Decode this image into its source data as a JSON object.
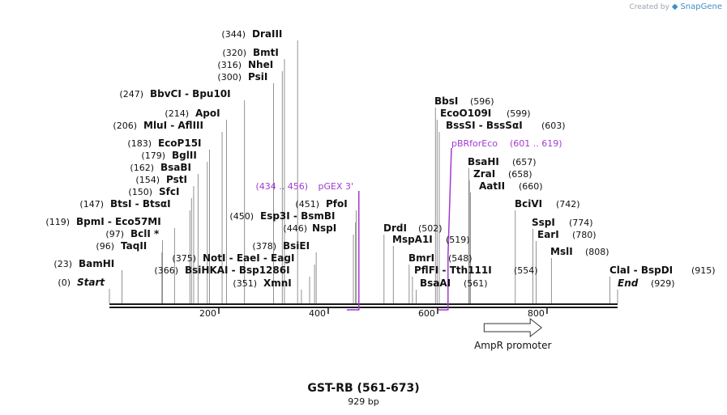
{
  "credit": {
    "prefix": "Created by",
    "brand": "SnapGene"
  },
  "map": {
    "title": "GST-RB (561-673)",
    "length_label": "929 bp",
    "total_length": 929,
    "axis_ticks": [
      200,
      400,
      600,
      800
    ],
    "colors": {
      "backbone": "#1a1a1a",
      "primer": "#a23ad2",
      "text": "#111111",
      "leader": "#777777"
    }
  },
  "sites": [
    {
      "name": "Start",
      "pos": "(0)",
      "bp": 0,
      "italic": true
    },
    {
      "name": "BamHI",
      "pos": "(23)",
      "bp": 23
    },
    {
      "name": "TaqII",
      "pos": "(96)",
      "bp": 96
    },
    {
      "name": "BclI *",
      "pos": "(97)",
      "bp": 97
    },
    {
      "name": "BpmI  -  Eco57MI",
      "pos": "(119)",
      "bp": 119
    },
    {
      "name": "BtsI  -  BtsαI",
      "pos": "(147)",
      "bp": 147
    },
    {
      "name": "SfcI",
      "pos": "(150)",
      "bp": 150
    },
    {
      "name": "PstI",
      "pos": "(154)",
      "bp": 154
    },
    {
      "name": "BsaBI",
      "pos": "(162)",
      "bp": 162
    },
    {
      "name": "BglII",
      "pos": "(179)",
      "bp": 179
    },
    {
      "name": "EcoP15I",
      "pos": "(183)",
      "bp": 183
    },
    {
      "name": "MluI  -  AflIII",
      "pos": "(206)",
      "bp": 206
    },
    {
      "name": "ApoI",
      "pos": "(214)",
      "bp": 214
    },
    {
      "name": "BbvCI  -  Bpu10I",
      "pos": "(247)",
      "bp": 247
    },
    {
      "name": "PsiI",
      "pos": "(300)",
      "bp": 300
    },
    {
      "name": "NheI",
      "pos": "(316)",
      "bp": 316
    },
    {
      "name": "BmtI",
      "pos": "(320)",
      "bp": 320
    },
    {
      "name": "DraIII",
      "pos": "(344)",
      "bp": 344
    },
    {
      "name": "BsiHKAI  -  Bsp1286I",
      "pos": "(366)",
      "bp": 366
    },
    {
      "name": "NotI  -  EaeI  -  EagI",
      "pos": "(375)",
      "bp": 375
    },
    {
      "name": "XmnI",
      "pos": "(351)",
      "bp": 351
    },
    {
      "name": "BsiEI",
      "pos": "(378)",
      "bp": 378
    },
    {
      "name": "NspI",
      "pos": "(446)",
      "bp": 446
    },
    {
      "name": "Esp3I  -  BsmBI",
      "pos": "(450)",
      "bp": 450
    },
    {
      "name": "PfoI",
      "pos": "(451)",
      "bp": 451
    },
    {
      "name": "DrdI",
      "pos": "(502)",
      "bp": 502
    },
    {
      "name": "MspA1I",
      "pos": "(519)",
      "bp": 519
    },
    {
      "name": "BmrI",
      "pos": "(548)",
      "bp": 548
    },
    {
      "name": "PflFI  -  Tth111I",
      "pos": "(554)",
      "bp": 554
    },
    {
      "name": "BsaAI",
      "pos": "(561)",
      "bp": 561
    },
    {
      "name": "BbsI",
      "pos": "(596)",
      "bp": 596
    },
    {
      "name": "EcoO109I",
      "pos": "(599)",
      "bp": 599
    },
    {
      "name": "BssSI  -  BssSαI",
      "pos": "(603)",
      "bp": 603
    },
    {
      "name": "BsaHI",
      "pos": "(657)",
      "bp": 657
    },
    {
      "name": "ZraI",
      "pos": "(658)",
      "bp": 658
    },
    {
      "name": "AatII",
      "pos": "(660)",
      "bp": 660
    },
    {
      "name": "BciVI",
      "pos": "(742)",
      "bp": 742
    },
    {
      "name": "SspI",
      "pos": "(774)",
      "bp": 774
    },
    {
      "name": "EarI",
      "pos": "(780)",
      "bp": 780
    },
    {
      "name": "MslI",
      "pos": "(808)",
      "bp": 808
    },
    {
      "name": "ClaI  -  BspDI",
      "pos": "(915)",
      "bp": 915
    },
    {
      "name": "End",
      "pos": "(929)",
      "bp": 929,
      "italic": true
    }
  ],
  "primers": [
    {
      "name": "pGEX 3'",
      "range": "(434 .. 456)",
      "start": 434,
      "end": 456,
      "label_side": "left"
    },
    {
      "name": "pBRforEco",
      "range": "(601 .. 619)",
      "start": 601,
      "end": 619,
      "label_side": "right"
    }
  ],
  "features": [
    {
      "name": "AmpR promoter",
      "start": 685,
      "end": 790,
      "direction": "forward"
    }
  ]
}
